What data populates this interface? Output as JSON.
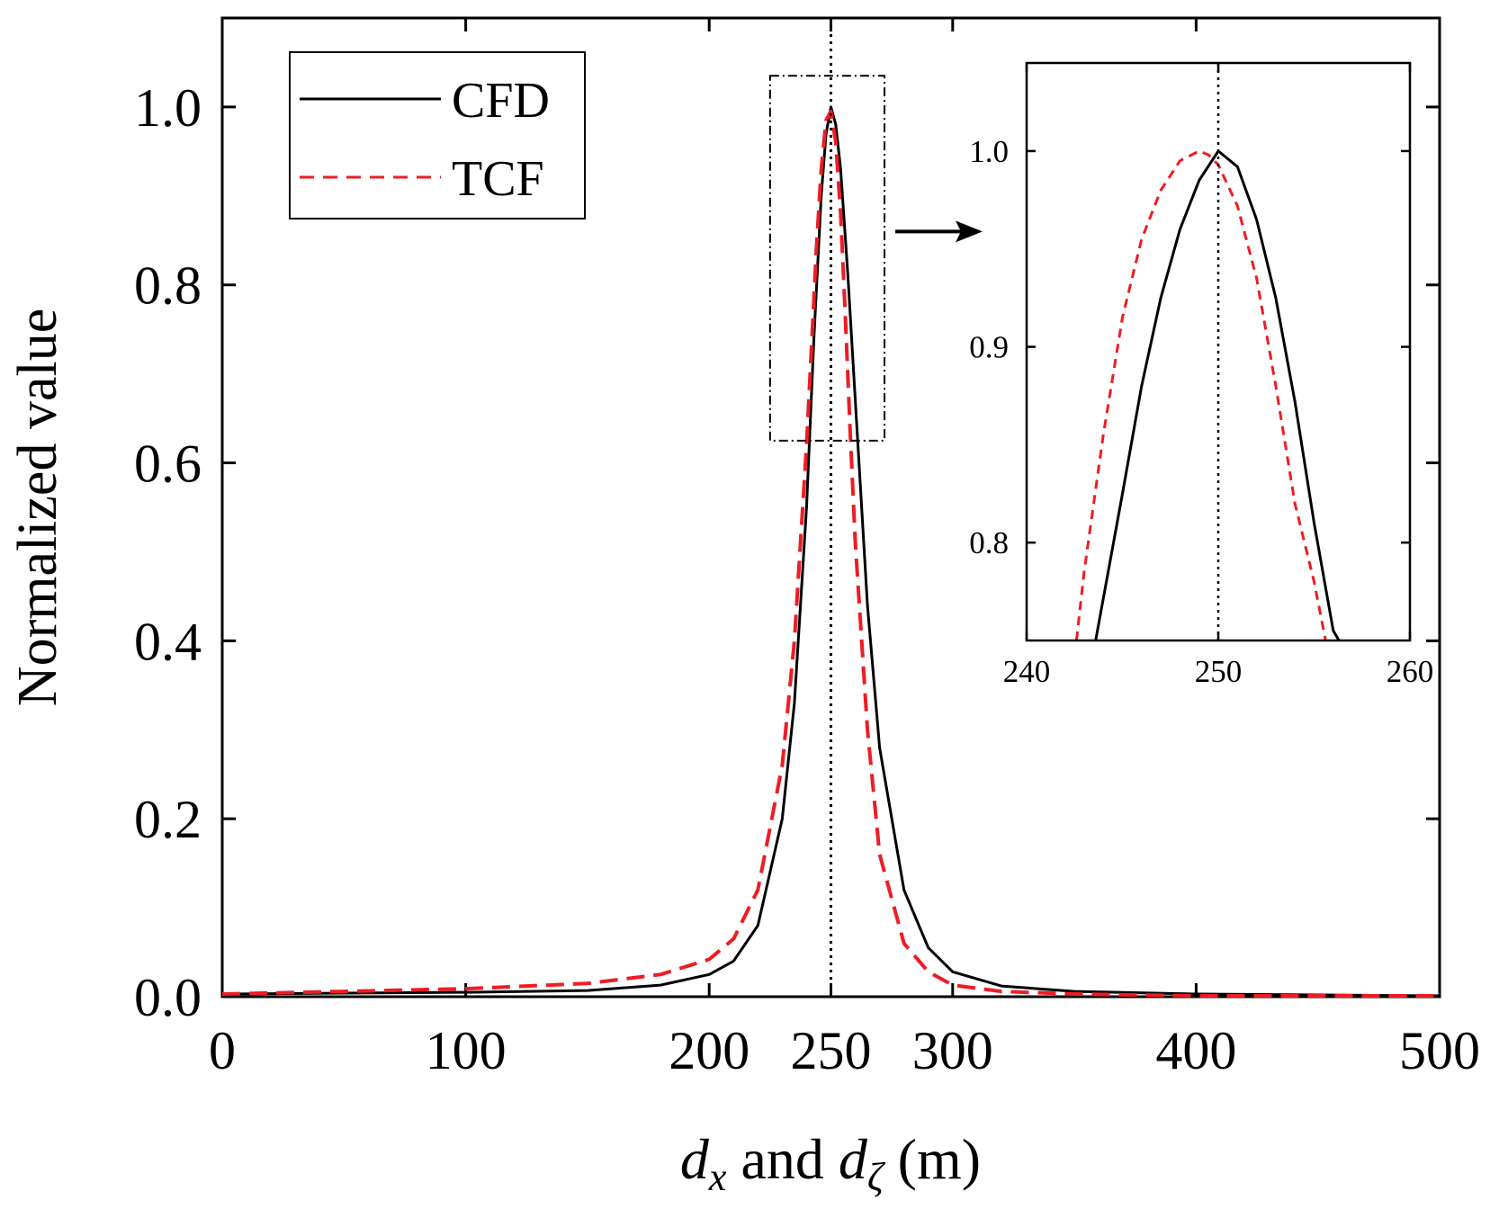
{
  "chart_data": {
    "type": "line",
    "xlabel": {
      "parts": [
        {
          "text": "d",
          "italic": true
        },
        {
          "text": "x",
          "italic": true,
          "sub": true
        },
        {
          "text": " and ",
          "italic": false
        },
        {
          "text": "d",
          "italic": true
        },
        {
          "text": "ζ",
          "italic": true,
          "sub": true
        },
        {
          "text": " (m)",
          "italic": false
        }
      ]
    },
    "ylabel": "Normalized value",
    "xlim": [
      0,
      500
    ],
    "ylim": [
      0,
      1.1
    ],
    "x_ticks": [
      0,
      100,
      200,
      250,
      300,
      400,
      500
    ],
    "x_tick_labels": [
      "0",
      "100",
      "200",
      "250",
      "300",
      "400",
      "500"
    ],
    "y_ticks": [
      0,
      0.2,
      0.4,
      0.6,
      0.8,
      1.0
    ],
    "y_tick_labels": [
      "0.0",
      "0.2",
      "0.4",
      "0.6",
      "0.8",
      "1.0"
    ],
    "legend": {
      "position": "top-left",
      "entries": [
        {
          "label": "CFD",
          "style": "solid",
          "color": "#000000"
        },
        {
          "label": "TCF",
          "style": "dashed",
          "color": "#ee1c24"
        }
      ]
    },
    "series": [
      {
        "name": "CFD",
        "color": "#000000",
        "style": "solid",
        "x": [
          0,
          50,
          100,
          150,
          180,
          200,
          210,
          220,
          230,
          235,
          240,
          243,
          246,
          248,
          250,
          252,
          254,
          257,
          260,
          265,
          270,
          280,
          290,
          300,
          320,
          350,
          400,
          450,
          500
        ],
        "y": [
          0.003,
          0.004,
          0.005,
          0.007,
          0.013,
          0.025,
          0.04,
          0.08,
          0.2,
          0.33,
          0.55,
          0.74,
          0.9,
          0.97,
          1.0,
          0.98,
          0.93,
          0.81,
          0.67,
          0.44,
          0.28,
          0.12,
          0.055,
          0.028,
          0.012,
          0.006,
          0.003,
          0.002,
          0.001
        ]
      },
      {
        "name": "TCF",
        "color": "#ee1c24",
        "style": "dashed",
        "x": [
          0,
          50,
          100,
          150,
          180,
          200,
          210,
          220,
          230,
          235,
          240,
          242,
          244,
          246,
          248,
          250,
          252,
          254,
          256,
          258,
          260,
          265,
          270,
          280,
          290,
          300,
          320,
          350,
          400,
          450,
          500
        ],
        "y": [
          0.003,
          0.006,
          0.009,
          0.015,
          0.025,
          0.042,
          0.065,
          0.12,
          0.26,
          0.4,
          0.62,
          0.73,
          0.84,
          0.93,
          0.985,
          0.995,
          0.96,
          0.88,
          0.76,
          0.63,
          0.51,
          0.3,
          0.16,
          0.06,
          0.028,
          0.013,
          0.006,
          0.003,
          0.001,
          0.001,
          0.001
        ]
      }
    ],
    "annotations": [
      {
        "type": "vertical-line",
        "x": 250,
        "style": "dotted"
      },
      {
        "type": "zoom-box",
        "x_range": [
          225,
          272
        ],
        "y_range": [
          0.625,
          1.035
        ],
        "style": "dash-dot",
        "arrow": "right"
      }
    ],
    "inset": {
      "position": "top-right",
      "xlim": [
        240,
        260
      ],
      "ylim": [
        0.75,
        1.045
      ],
      "x_ticks": [
        240,
        250,
        260
      ],
      "x_tick_labels": [
        "240",
        "250",
        "260"
      ],
      "y_ticks": [
        0.8,
        0.9,
        1.0
      ],
      "y_tick_labels": [
        "0.8",
        "0.9",
        "1.0"
      ],
      "vertical_line_x": 250,
      "series": [
        {
          "name": "CFD",
          "color": "#000000",
          "style": "solid",
          "x": [
            243.6,
            245,
            246,
            247,
            248,
            249,
            250,
            251,
            252,
            253,
            254,
            255,
            256,
            256.3
          ],
          "y": [
            0.75,
            0.825,
            0.88,
            0.925,
            0.96,
            0.985,
            1.0,
            0.992,
            0.965,
            0.925,
            0.872,
            0.81,
            0.755,
            0.75
          ]
        },
        {
          "name": "TCF",
          "color": "#ee1c24",
          "style": "dashed",
          "x": [
            242.6,
            243,
            244,
            245,
            246,
            247,
            248,
            249,
            249.5,
            250,
            251,
            252,
            253,
            254,
            255,
            255.6
          ],
          "y": [
            0.75,
            0.785,
            0.855,
            0.915,
            0.955,
            0.98,
            0.995,
            1.0,
            0.998,
            0.993,
            0.972,
            0.935,
            0.88,
            0.82,
            0.78,
            0.75
          ]
        }
      ]
    }
  }
}
